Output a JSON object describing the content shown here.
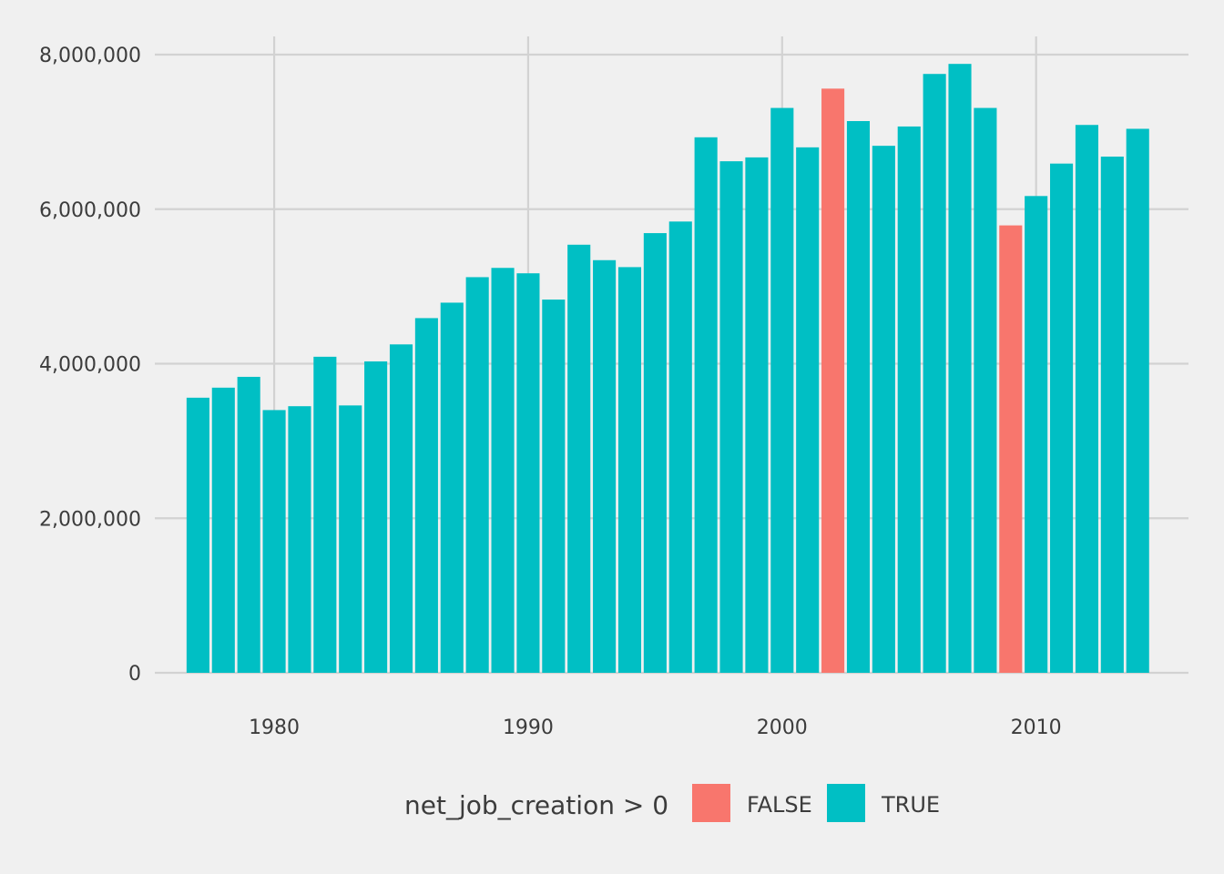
{
  "chart_data": {
    "type": "bar",
    "title": "",
    "xlabel": "",
    "ylabel": "",
    "x": [
      1977,
      1978,
      1979,
      1980,
      1981,
      1982,
      1983,
      1984,
      1985,
      1986,
      1987,
      1988,
      1989,
      1990,
      1991,
      1992,
      1993,
      1994,
      1995,
      1996,
      1997,
      1998,
      1999,
      2000,
      2001,
      2002,
      2003,
      2004,
      2005,
      2006,
      2007,
      2008,
      2009,
      2010,
      2011,
      2012,
      2013,
      2014
    ],
    "values": [
      3560000,
      3690000,
      3830000,
      3400000,
      3450000,
      4090000,
      3460000,
      4030000,
      4250000,
      4590000,
      4790000,
      5120000,
      5240000,
      5170000,
      4830000,
      5540000,
      5340000,
      5250000,
      5690000,
      5840000,
      6930000,
      6620000,
      6670000,
      7310000,
      6800000,
      7560000,
      7140000,
      6820000,
      7070000,
      7750000,
      7880000,
      7310000,
      5790000,
      6170000,
      6590000,
      7090000,
      6680000,
      7040000
    ],
    "groups": [
      "TRUE",
      "TRUE",
      "TRUE",
      "TRUE",
      "TRUE",
      "TRUE",
      "TRUE",
      "TRUE",
      "TRUE",
      "TRUE",
      "TRUE",
      "TRUE",
      "TRUE",
      "TRUE",
      "TRUE",
      "TRUE",
      "TRUE",
      "TRUE",
      "TRUE",
      "TRUE",
      "TRUE",
      "TRUE",
      "TRUE",
      "TRUE",
      "TRUE",
      "FALSE",
      "TRUE",
      "TRUE",
      "TRUE",
      "TRUE",
      "TRUE",
      "TRUE",
      "FALSE",
      "TRUE",
      "TRUE",
      "TRUE",
      "TRUE",
      "TRUE"
    ],
    "xlim": [
      1975.3,
      2016.0
    ],
    "ylim": [
      0,
      8000000
    ],
    "x_ticks": [
      1980,
      1990,
      2000,
      2010
    ],
    "x_tick_labels": [
      "1980",
      "1990",
      "2000",
      "2010"
    ],
    "y_ticks": [
      0,
      2000000,
      4000000,
      6000000,
      8000000
    ],
    "y_tick_labels": [
      "0",
      "2,000,000",
      "4,000,000",
      "6,000,000",
      "8,000,000"
    ],
    "grid": true,
    "legend": {
      "title": "net_job_creation > 0",
      "position": "bottom",
      "entries": [
        {
          "label": "FALSE",
          "color": "#f8766d"
        },
        {
          "label": "TRUE",
          "color": "#00bfc4"
        }
      ]
    },
    "colors": {
      "FALSE": "#f8766d",
      "TRUE": "#00bfc4"
    }
  }
}
